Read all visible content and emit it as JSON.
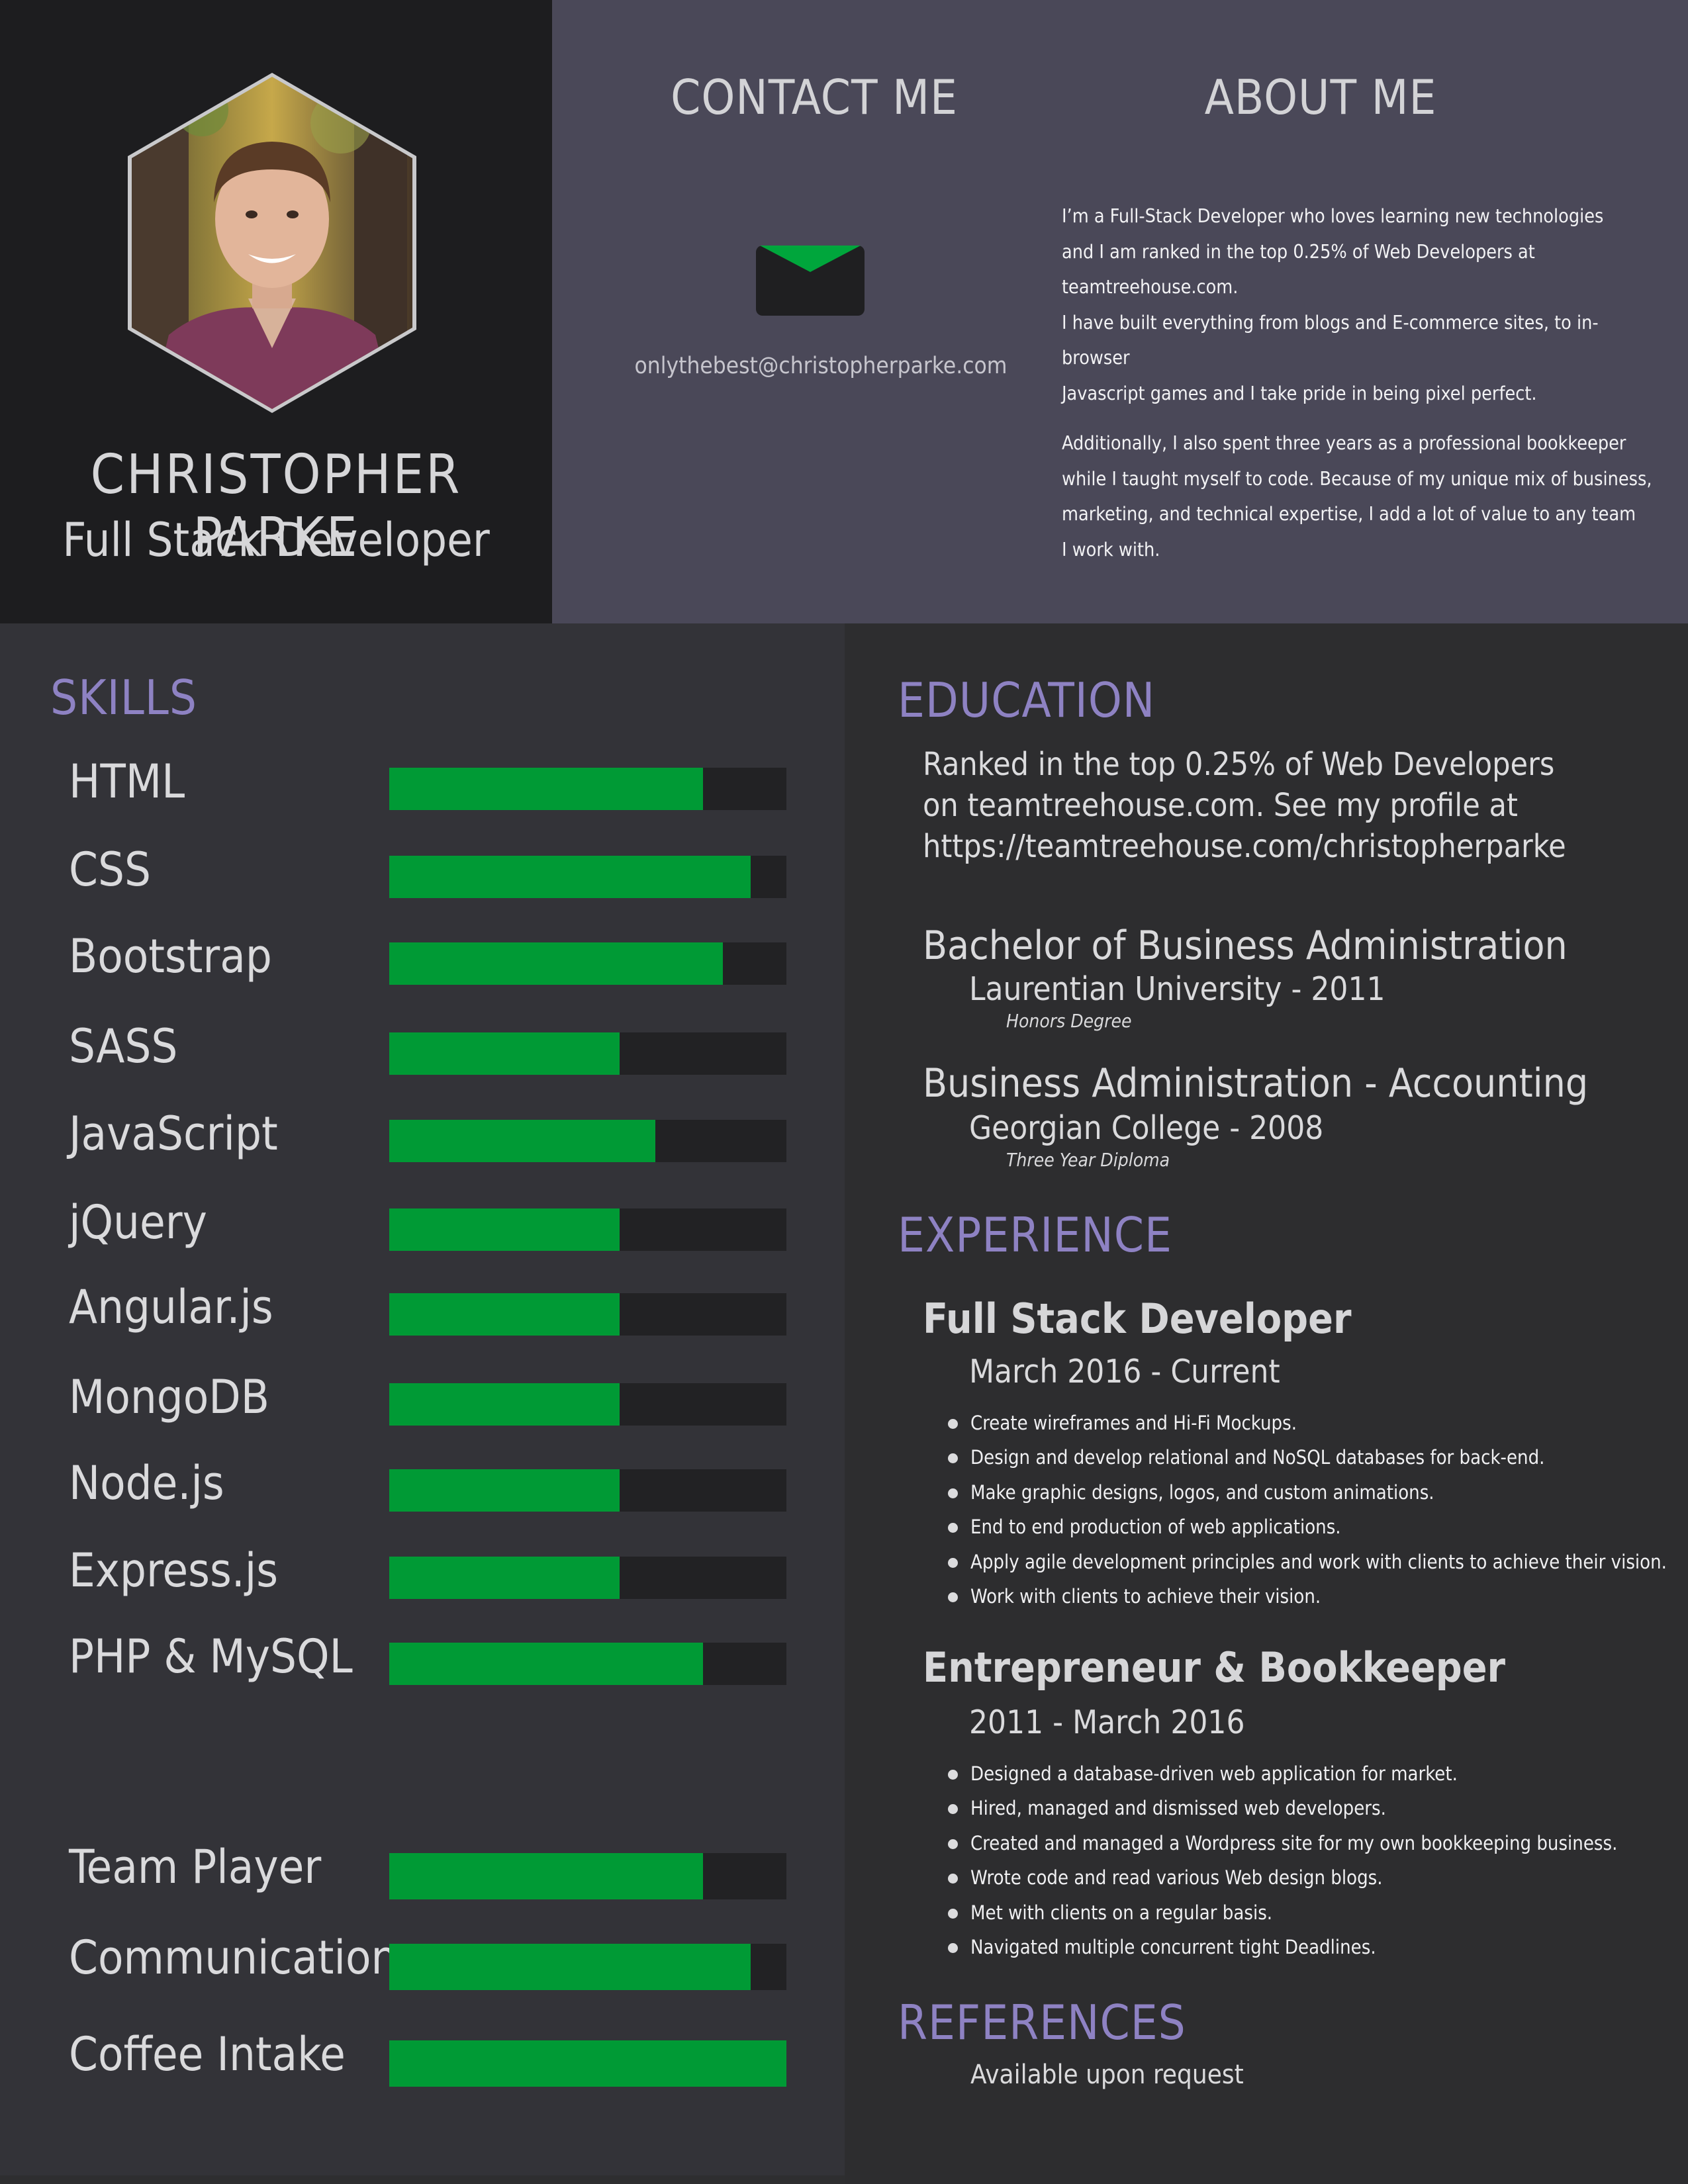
{
  "colors": {
    "accent_purple": "#8e82c3",
    "bar_green": "#009a35",
    "bar_track": "#222224",
    "header_dark": "#1d1d1f",
    "header_slate": "#4a4858"
  },
  "profile": {
    "name": "CHRISTOPHER PARKE",
    "role": "Full Stack Developer"
  },
  "contact": {
    "heading": "CONTACT ME",
    "icon": "envelope-icon",
    "email": "onlythebest@christopherparke.com"
  },
  "about": {
    "heading": "ABOUT ME",
    "paragraph1_lines": [
      "I’m a Full-Stack Developer who loves learning new technologies",
      "and I am ranked in the top 0.25% of Web Developers at teamtreehouse.com.",
      "I have built everything from blogs and E-commerce sites, to in-browser",
      "Javascript games and I take pride in being pixel perfect."
    ],
    "paragraph2_lines": [
      "Additionally, I also spent three years as a professional bookkeeper",
      "while I taught myself to code. Because of my unique mix of business,",
      "marketing, and technical expertise, I add a lot of value to any team",
      "I work with."
    ]
  },
  "skills": {
    "heading": "SKILLS",
    "technical": [
      {
        "label": "HTML",
        "level": 0.79
      },
      {
        "label": "CSS",
        "level": 0.91
      },
      {
        "label": "Bootstrap",
        "level": 0.84
      },
      {
        "label": "SASS",
        "level": 0.58
      },
      {
        "label": "JavaScript",
        "level": 0.67
      },
      {
        "label": "jQuery",
        "level": 0.58
      },
      {
        "label": "Angular.js",
        "level": 0.58
      },
      {
        "label": "MongoDB",
        "level": 0.58
      },
      {
        "label": "Node.js",
        "level": 0.58
      },
      {
        "label": "Express.js",
        "level": 0.58
      },
      {
        "label": "PHP & MySQL",
        "level": 0.79
      }
    ],
    "soft": [
      {
        "label": "Team Player",
        "level": 0.79
      },
      {
        "label": "Communication",
        "level": 0.91
      },
      {
        "label": "Coffee Intake",
        "level": 1.0
      }
    ]
  },
  "education": {
    "heading": "EDUCATION",
    "summary_lines": [
      "Ranked in the top 0.25% of Web Developers",
      "on teamtreehouse.com.  See my profile at",
      "https://teamtreehouse.com/christopherparke"
    ],
    "degrees": [
      {
        "title": "Bachelor of Business Administration",
        "school": "Laurentian University - 2011",
        "note": "Honors Degree"
      },
      {
        "title": "Business Administration - Accounting",
        "school": "Georgian College - 2008",
        "note": "Three Year Diploma"
      }
    ]
  },
  "experience": {
    "heading": "EXPERIENCE",
    "jobs": [
      {
        "title": "Full Stack Developer",
        "dates": "March 2016 - Current",
        "bullets": [
          "Create wireframes and Hi-Fi Mockups.",
          "Design and develop relational and NoSQL databases for back-end.",
          "Make graphic designs, logos, and custom animations.",
          "End to end production of web applications.",
          "Apply agile development principles and work with clients to achieve their vision.",
          "Work with clients to achieve their vision."
        ]
      },
      {
        "title": "Entrepreneur & Bookkeeper",
        "dates": "2011 - March 2016",
        "bullets": [
          "Designed a database-driven web application for market.",
          "Hired, managed and dismissed web developers.",
          "Created and managed a Wordpress site for my own bookkeeping business.",
          "Wrote code and read various Web design blogs.",
          "Met with clients on a regular basis.",
          "Navigated multiple concurrent tight Deadlines."
        ]
      }
    ]
  },
  "references": {
    "heading": "REFERENCES",
    "text": "Available upon request"
  }
}
